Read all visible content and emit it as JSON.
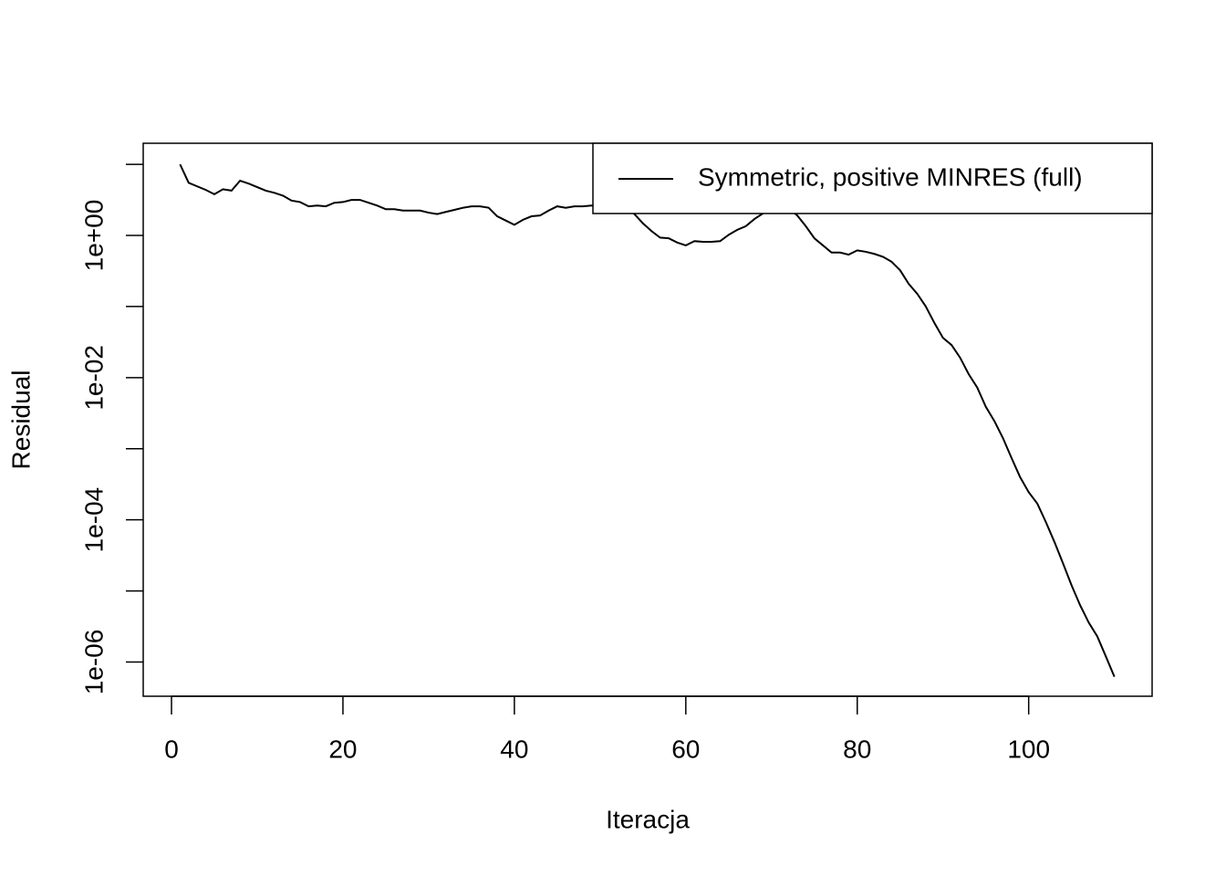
{
  "chart_data": {
    "type": "line",
    "xlabel": "Iteracja",
    "ylabel": "Residual",
    "x": [
      1,
      2,
      3,
      4,
      5,
      6,
      7,
      8,
      9,
      10,
      11,
      12,
      13,
      14,
      15,
      16,
      17,
      18,
      19,
      20,
      21,
      22,
      23,
      24,
      25,
      26,
      27,
      28,
      29,
      30,
      31,
      32,
      33,
      34,
      35,
      36,
      37,
      38,
      39,
      40,
      41,
      42,
      43,
      44,
      45,
      46,
      47,
      48,
      49,
      50,
      51,
      52,
      53,
      54,
      55,
      56,
      57,
      58,
      59,
      60,
      61,
      62,
      63,
      64,
      65,
      66,
      67,
      68,
      69,
      70,
      71,
      72,
      73,
      74,
      75,
      76,
      77,
      78,
      79,
      80,
      81,
      82,
      83,
      84,
      85,
      86,
      87,
      88,
      89,
      90,
      91,
      92,
      93,
      94,
      95,
      96,
      97,
      98,
      99,
      100,
      101,
      102,
      103,
      104,
      105,
      106,
      107,
      108,
      109,
      110
    ],
    "series": [
      {
        "name": "Symmetric, positive MINRES (full)",
        "color": "#000000",
        "values": [
          10,
          5.5,
          4.9,
          4.37,
          3.8,
          4.47,
          4.27,
          5.89,
          5.37,
          4.79,
          4.27,
          3.98,
          3.63,
          3.09,
          2.95,
          2.57,
          2.63,
          2.57,
          2.88,
          2.95,
          3.16,
          3.16,
          2.88,
          2.63,
          2.34,
          2.34,
          2.24,
          2.24,
          2.24,
          2.09,
          2.0,
          2.14,
          2.29,
          2.45,
          2.57,
          2.57,
          2.45,
          1.86,
          1.62,
          1.41,
          1.66,
          1.86,
          1.91,
          2.24,
          2.57,
          2.45,
          2.57,
          2.57,
          2.63,
          2.63,
          2.69,
          2.63,
          2.4,
          2.0,
          1.48,
          1.15,
          0.933,
          0.912,
          0.794,
          0.724,
          0.832,
          0.813,
          0.813,
          0.832,
          1.02,
          1.2,
          1.35,
          1.7,
          2.04,
          2.34,
          2.51,
          2.4,
          1.91,
          1.35,
          0.912,
          0.724,
          0.575,
          0.575,
          0.537,
          0.617,
          0.589,
          0.55,
          0.501,
          0.427,
          0.324,
          0.209,
          0.151,
          0.1,
          0.0589,
          0.0363,
          0.0288,
          0.0191,
          0.0112,
          0.00724,
          0.00389,
          0.00245,
          0.00141,
          0.000741,
          0.000398,
          0.000245,
          0.00017,
          9.33e-05,
          4.9e-05,
          2.45e-05,
          1.2e-05,
          6.3e-06,
          3.6e-06,
          2.3e-06,
          1.2e-06,
          6.2e-07
        ]
      }
    ],
    "xlim": [
      -3.3,
      114.4
    ],
    "xticks": [
      0,
      20,
      40,
      60,
      80,
      100
    ],
    "ylim": [
      19.8,
      3.3e-07
    ],
    "ylog": true,
    "yticks": [
      {
        "value": 1,
        "label": "1e+00"
      },
      {
        "value": 0.01,
        "label": "1e-02"
      },
      {
        "value": 0.0001,
        "label": "1e-04"
      },
      {
        "value": 1e-06,
        "label": "1e-06"
      }
    ],
    "yminor_ticks": [
      10,
      0.1,
      0.001,
      1e-05
    ],
    "legend": "topright"
  }
}
